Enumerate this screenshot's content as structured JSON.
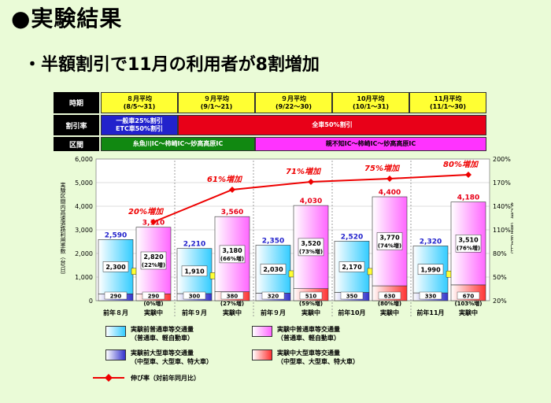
{
  "title": "●実験結果",
  "subtitle": "・半額割引で11月の利用者が8割増加",
  "header": {
    "period_label": "時期",
    "discount_label": "割引率",
    "section_label": "区間",
    "periods": [
      {
        "line1": "８月平均",
        "line2": "(8/5～31)"
      },
      {
        "line1": "９月平均",
        "line2": "(9/1～21)"
      },
      {
        "line1": "９月平均",
        "line2": "(9/22～30)"
      },
      {
        "line1": "10月平均",
        "line2": "(10/1～31)"
      },
      {
        "line1": "11月平均",
        "line2": "(11/1～30)"
      }
    ],
    "discount_first_1": "一般車25%割引",
    "discount_first_2": "ETC車50%割引",
    "discount_rest": "全車50%割引",
    "section_first": "糸魚川IC～柿崎IC～妙高高原IC",
    "section_rest": "親不知IC～柿崎IC～妙高高原IC"
  },
  "legend": {
    "before_normal_1": "実験前普通車等交通量",
    "before_normal_2": "（普通車、軽自動車）",
    "during_normal_1": "実験中普通車等交通量",
    "during_normal_2": "（普通車、軽自動車）",
    "before_large_1": "実験前大型車等交通量",
    "before_large_2": "（中型車、大型車、特大車）",
    "during_large_1": "実験中大型車等交通量",
    "during_large_2": "（中型車、大型車、特大車）",
    "growth": "伸び率（対前年同月比）"
  },
  "colors": {
    "before_normal": "#33ccff",
    "during_normal": "#ff66ff",
    "before_large": "#3333cc",
    "during_large": "#ff3333",
    "growth_line": "#ee0000",
    "arrow": "#ffff33"
  },
  "chart_data": {
    "type": "bar",
    "ylabel": "実験区間内高速道路利用車数（台/日）",
    "y2label": "伸び率（前年同月比）",
    "ylim": [
      0,
      6000
    ],
    "yticks": [
      "0",
      "1,000",
      "2,000",
      "3,000",
      "4,000",
      "5,000",
      "6,000"
    ],
    "y2lim": [
      20,
      200
    ],
    "y2ticks": [
      "20%",
      "50%",
      "80%",
      "110%",
      "140%",
      "170%",
      "200%"
    ],
    "categories": [
      "前年８月",
      "実験中",
      "前年９月",
      "実験中",
      "前年９月",
      "実験中",
      "前年10月",
      "実験中",
      "前年11月",
      "実験中"
    ],
    "series": [
      {
        "name": "実験前普通車等交通量",
        "values": [
          2300,
          null,
          1910,
          null,
          2030,
          null,
          2170,
          null,
          1990,
          null
        ]
      },
      {
        "name": "実験前大型車等交通量",
        "values": [
          290,
          null,
          300,
          null,
          320,
          null,
          350,
          null,
          330,
          null
        ]
      },
      {
        "name": "実験中普通車等交通量",
        "values": [
          null,
          2820,
          null,
          3180,
          null,
          3520,
          null,
          3770,
          null,
          3510
        ]
      },
      {
        "name": "実験中大型車等交通量",
        "values": [
          null,
          290,
          null,
          380,
          null,
          510,
          null,
          630,
          null,
          670
        ]
      }
    ],
    "totals": [
      2590,
      3110,
      2210,
      3560,
      2350,
      4030,
      2520,
      4400,
      2320,
      4180
    ],
    "total_labels": [
      "2,590",
      "3,110",
      "2,210",
      "3,560",
      "2,350",
      "4,030",
      "2,520",
      "4,400",
      "2,320",
      "4,180"
    ],
    "normal_labels": [
      "2,300",
      "2,820",
      "1,910",
      "3,180",
      "2,030",
      "3,520",
      "2,170",
      "3,770",
      "1,990",
      "3,510"
    ],
    "normal_pcts": [
      null,
      "(22%増)",
      null,
      "(66%増)",
      null,
      "(73%増)",
      null,
      "(74%増)",
      null,
      "(76%増)"
    ],
    "large_labels": [
      "290",
      "290",
      "300",
      "380",
      "320",
      "510",
      "350",
      "630",
      "330",
      "670"
    ],
    "large_pcts": [
      null,
      "(0%増)",
      null,
      "(27%増)",
      null,
      "(59%増)",
      null,
      "(80%増)",
      null,
      "(103%増)"
    ],
    "growth": {
      "name": "伸び率（対前年同月比）",
      "values": [
        120,
        161,
        171,
        175,
        180
      ],
      "labels": [
        "20%増加",
        "61%増加",
        "71%増加",
        "75%増加",
        "80%増加"
      ]
    }
  }
}
